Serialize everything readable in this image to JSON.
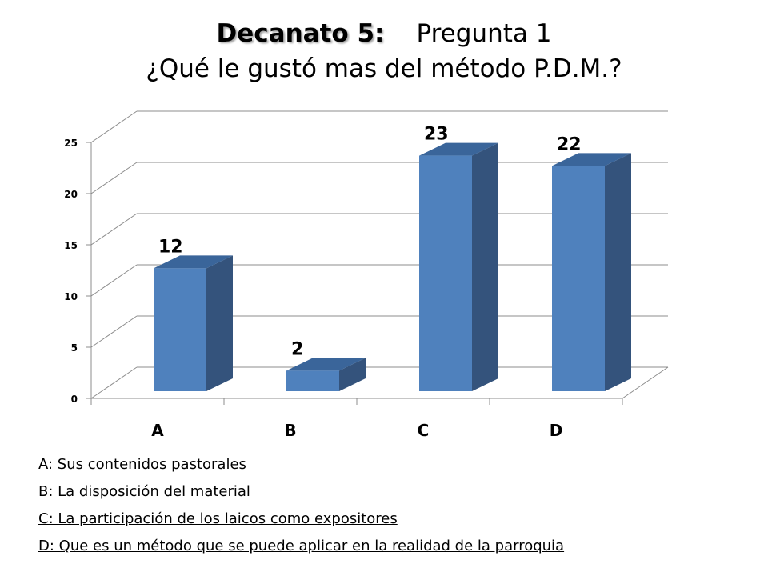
{
  "title": {
    "bold": "Decanato 5:",
    "rest": "Pregunta 1",
    "subtitle": "¿Qué le gustó mas del método P.D.M.?"
  },
  "chart_data": {
    "type": "bar",
    "categories": [
      "A",
      "B",
      "C",
      "D"
    ],
    "values": [
      12,
      2,
      23,
      22
    ],
    "data_labels": [
      "12",
      "2",
      "23",
      "22"
    ],
    "ylim": [
      0,
      25
    ],
    "yticks": [
      "0",
      "5",
      "10",
      "15",
      "20",
      "25"
    ],
    "grid": true,
    "style": "3d-column",
    "colors": {
      "bar_front": "#4f81bd",
      "bar_side": "#34537c",
      "bar_top": "#3a659a",
      "grid": "#8c8c8c"
    }
  },
  "legend": [
    {
      "text": "A: Sus contenidos pastorales",
      "underlined": false
    },
    {
      "text": "B: La disposición del material",
      "underlined": false
    },
    {
      "text": "C: La participación de los laicos como expositores",
      "underlined": true
    },
    {
      "text": "D: Que es un método que se puede aplicar en la realidad de la parroquia",
      "underlined": true
    }
  ]
}
